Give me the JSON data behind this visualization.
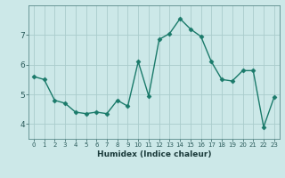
{
  "x": [
    0,
    1,
    2,
    3,
    4,
    5,
    6,
    7,
    8,
    9,
    10,
    11,
    12,
    13,
    14,
    15,
    16,
    17,
    18,
    19,
    20,
    21,
    22,
    23
  ],
  "y": [
    5.6,
    5.5,
    4.8,
    4.7,
    4.4,
    4.35,
    4.4,
    4.35,
    4.8,
    4.6,
    6.1,
    4.95,
    6.85,
    7.05,
    7.55,
    7.2,
    6.95,
    6.1,
    5.5,
    5.45,
    5.8,
    5.8,
    3.9,
    4.9
  ],
  "xlabel": "Humidex (Indice chaleur)",
  "xlim": [
    -0.5,
    23.5
  ],
  "ylim": [
    3.5,
    8.0
  ],
  "yticks": [
    4,
    5,
    6,
    7
  ],
  "xticks": [
    0,
    1,
    2,
    3,
    4,
    5,
    6,
    7,
    8,
    9,
    10,
    11,
    12,
    13,
    14,
    15,
    16,
    17,
    18,
    19,
    20,
    21,
    22,
    23
  ],
  "line_color": "#1a7a6a",
  "marker_color": "#1a7a6a",
  "bg_color": "#cce8e8",
  "grid_color": "#aacccc",
  "axis_color": "#5a8a8a",
  "tick_color": "#2a5a5a",
  "label_color": "#1a3a3a"
}
